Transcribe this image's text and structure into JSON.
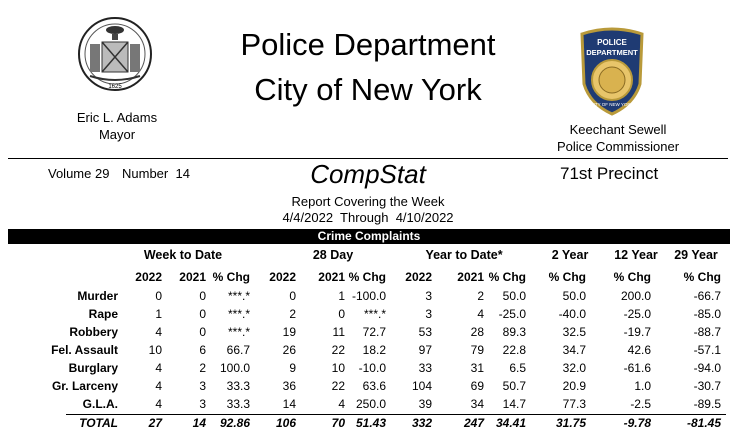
{
  "header": {
    "title_line1": "Police Department",
    "title_line2": "City of New York",
    "mayor_name": "Eric L. Adams",
    "mayor_title": "Mayor",
    "commissioner_name": "Keechant Sewell",
    "commissioner_title": "Police Commissioner",
    "seal_year": "1625",
    "badge_line1": "POLICE",
    "badge_line2": "DEPARTMENT",
    "badge_line3": "CITY OF NEW YORK"
  },
  "report": {
    "volume": "Volume 29",
    "number": "Number  14",
    "name": "CompStat",
    "precinct": "71st Precinct",
    "covering": "Report Covering the Week",
    "dates": "4/4/2022  Through  4/10/2022",
    "section": "Crime Complaints"
  },
  "table": {
    "groups": [
      "Week to Date",
      "28 Day",
      "Year to Date*",
      "2 Year",
      "12 Year",
      "29 Year"
    ],
    "subheaders": [
      "2022",
      "2021",
      "% Chg",
      "2022",
      "2021",
      "% Chg",
      "2022",
      "2021",
      "% Chg",
      "% Chg",
      "% Chg",
      "% Chg"
    ],
    "rows": [
      {
        "label": "Murder",
        "values": [
          "0",
          "0",
          "***.*",
          "0",
          "1",
          "-100.0",
          "3",
          "2",
          "50.0",
          "50.0",
          "200.0",
          "-66.7"
        ]
      },
      {
        "label": "Rape",
        "values": [
          "1",
          "0",
          "***.*",
          "2",
          "0",
          "***.*",
          "3",
          "4",
          "-25.0",
          "-40.0",
          "-25.0",
          "-85.0"
        ]
      },
      {
        "label": "Robbery",
        "values": [
          "4",
          "0",
          "***.*",
          "19",
          "11",
          "72.7",
          "53",
          "28",
          "89.3",
          "32.5",
          "-19.7",
          "-88.7"
        ]
      },
      {
        "label": "Fel. Assault",
        "values": [
          "10",
          "6",
          "66.7",
          "26",
          "22",
          "18.2",
          "97",
          "79",
          "22.8",
          "34.7",
          "42.6",
          "-57.1"
        ]
      },
      {
        "label": "Burglary",
        "values": [
          "4",
          "2",
          "100.0",
          "9",
          "10",
          "-10.0",
          "33",
          "31",
          "6.5",
          "32.0",
          "-61.6",
          "-94.0"
        ]
      },
      {
        "label": "Gr. Larceny",
        "values": [
          "4",
          "3",
          "33.3",
          "36",
          "22",
          "63.6",
          "104",
          "69",
          "50.7",
          "20.9",
          "1.0",
          "-30.7"
        ]
      },
      {
        "label": "G.L.A.",
        "values": [
          "4",
          "3",
          "33.3",
          "14",
          "4",
          "250.0",
          "39",
          "34",
          "14.7",
          "77.3",
          "-2.5",
          "-89.5"
        ]
      }
    ],
    "total": {
      "label": "TOTAL",
      "values": [
        "27",
        "14",
        "92.86",
        "106",
        "70",
        "51.43",
        "332",
        "247",
        "34.41",
        "31.75",
        "-9.78",
        "-81.45"
      ]
    }
  }
}
